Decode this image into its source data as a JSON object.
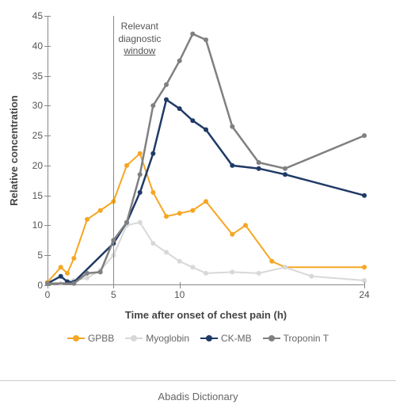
{
  "chart": {
    "type": "line",
    "x_axis": {
      "title": "Time after onset of chest pain (h)",
      "ticks": [
        0,
        5,
        10,
        24
      ],
      "lim": [
        0,
        24
      ],
      "fontsize": 12,
      "title_fontsize": 13,
      "color": "#555555"
    },
    "y_axis": {
      "title": "Relative concentration",
      "ticks": [
        0,
        5,
        10,
        15,
        20,
        25,
        30,
        35,
        40,
        45
      ],
      "lim": [
        0,
        45
      ],
      "fontsize": 12,
      "title_fontsize": 13,
      "color": "#555555"
    },
    "reference_line": {
      "x": 5,
      "label_lines": [
        "Relevant",
        "diagnostic",
        "window"
      ],
      "underline_last": true,
      "color": "#888888"
    },
    "series": [
      {
        "name": "GPBB",
        "color": "#f5a623",
        "marker": "circle",
        "line_width": 2,
        "marker_size": 6,
        "x": [
          0,
          1,
          1.5,
          2,
          3,
          4,
          5,
          6,
          7,
          8,
          9,
          10,
          11,
          12,
          14,
          15,
          17,
          18,
          24
        ],
        "y": [
          0.5,
          3,
          2,
          4.5,
          11,
          12.5,
          14,
          20,
          22,
          15.5,
          11.5,
          12,
          12.5,
          14,
          8.5,
          10,
          4,
          3,
          3
        ]
      },
      {
        "name": "Myoglobin",
        "color": "#d8d8d8",
        "marker": "circle",
        "line_width": 2,
        "marker_size": 6,
        "x": [
          0,
          1,
          2,
          3,
          4,
          5,
          6,
          7,
          8,
          9,
          10,
          11,
          12,
          14,
          16,
          18,
          20,
          24
        ],
        "y": [
          0.3,
          0.3,
          0.8,
          1.2,
          2.5,
          5,
          10,
          10.5,
          7,
          5.5,
          4,
          3,
          2,
          2.2,
          2,
          3,
          1.5,
          0.8
        ]
      },
      {
        "name": "CK-MB",
        "color": "#1f3a66",
        "marker": "circle",
        "line_width": 2.5,
        "marker_size": 6,
        "x": [
          0,
          1,
          1.5,
          2,
          5,
          6,
          7,
          8,
          9,
          10,
          11,
          12,
          14,
          16,
          18,
          24
        ],
        "y": [
          0.3,
          1.5,
          0.6,
          0.5,
          7,
          10.5,
          15.5,
          22,
          31,
          29.5,
          27.5,
          26,
          20,
          19.5,
          18.5,
          15
        ]
      },
      {
        "name": "Troponin T",
        "color": "#808080",
        "marker": "circle",
        "line_width": 2.5,
        "marker_size": 6,
        "x": [
          0,
          2,
          3,
          4,
          5,
          6,
          7,
          8,
          9,
          10,
          11,
          12,
          14,
          16,
          18,
          24
        ],
        "y": [
          0.3,
          0.3,
          2,
          2.2,
          7.5,
          10.5,
          18.5,
          30,
          33.5,
          37.5,
          42,
          41,
          26.5,
          20.5,
          19.5,
          25
        ]
      }
    ],
    "background_color": "#ffffff",
    "axis_color": "#888888"
  },
  "legend": {
    "items": [
      {
        "label": "GPBB",
        "color": "#f5a623"
      },
      {
        "label": "Myoglobin",
        "color": "#d8d8d8"
      },
      {
        "label": "CK-MB",
        "color": "#1f3a66"
      },
      {
        "label": "Troponin T",
        "color": "#808080"
      }
    ]
  },
  "footer": {
    "text": "Abadis Dictionary"
  }
}
